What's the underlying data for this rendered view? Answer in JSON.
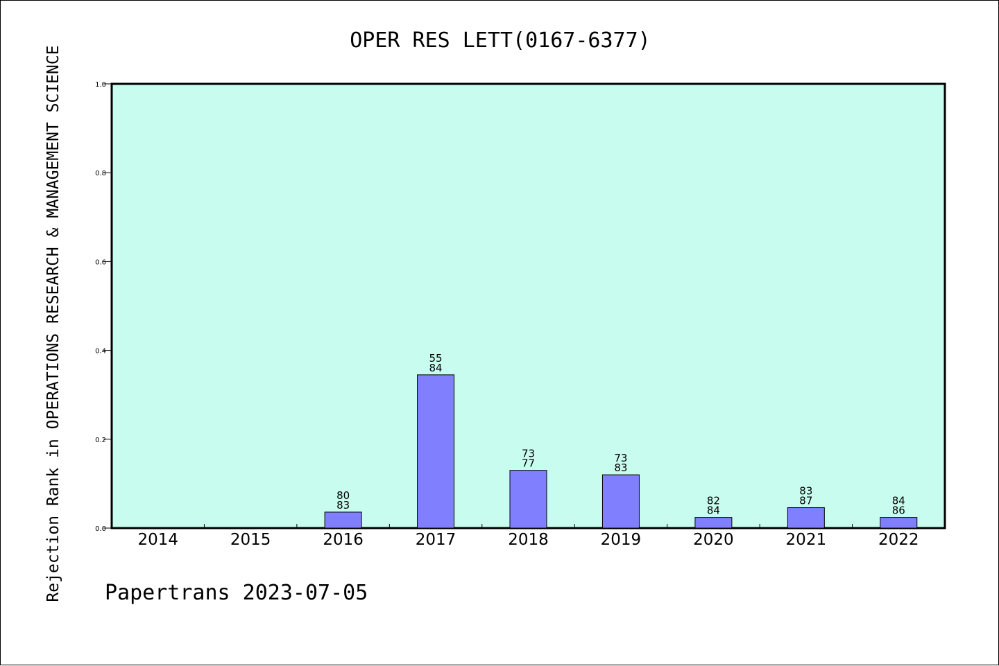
{
  "chart_data": {
    "type": "bar",
    "title": "OPER RES LETT(0167-6377)",
    "ylabel": "Rejection Rank in OPERATIONS RESEARCH & MANAGEMENT SCIENCE",
    "xlabel": "",
    "ylim": [
      0,
      1.0
    ],
    "yticks": [
      "0.0",
      "0.2",
      "0.4",
      "0.6",
      "0.8",
      "1.0"
    ],
    "categories": [
      "2014",
      "2015",
      "2016",
      "2017",
      "2018",
      "2019",
      "2020",
      "2021",
      "2022"
    ],
    "values": [
      0,
      0,
      0.036,
      0.345,
      0.13,
      0.12,
      0.024,
      0.046,
      0.024
    ],
    "bar_labels": [
      null,
      null,
      [
        "80",
        "83"
      ],
      [
        "55",
        "84"
      ],
      [
        "73",
        "77"
      ],
      [
        "73",
        "83"
      ],
      [
        "82",
        "84"
      ],
      [
        "83",
        "87"
      ],
      [
        "84",
        "86"
      ]
    ],
    "grid": false,
    "plot_background": "#c8fcee",
    "bar_color": "#8080ff"
  },
  "footer": "Papertrans 2023-07-05"
}
